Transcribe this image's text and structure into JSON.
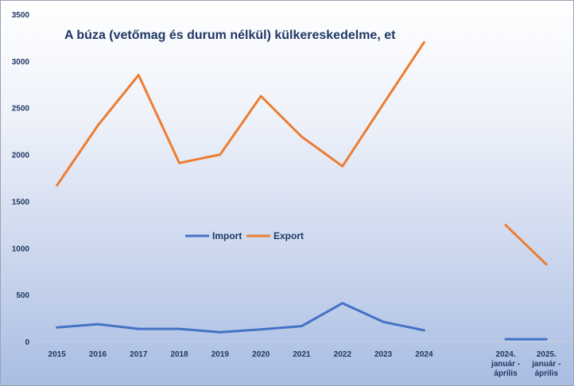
{
  "chart_data": {
    "type": "line",
    "title": "A búza (vetőmag és durum nélkül) külkereskedelme, et",
    "xlabel": "",
    "ylabel": "",
    "ylim": [
      0,
      3500
    ],
    "yticks": [
      "0",
      "500",
      "1000",
      "1500",
      "2000",
      "2500",
      "3000",
      "3500"
    ],
    "grid": false,
    "legend": "center",
    "categories": [
      [
        "2015"
      ],
      [
        "2016"
      ],
      [
        "2017"
      ],
      [
        "2018"
      ],
      [
        "2019"
      ],
      [
        "2020"
      ],
      [
        "2021"
      ],
      [
        "2022"
      ],
      [
        "2023"
      ],
      [
        "2024"
      ],
      [
        ""
      ],
      [
        "2024.",
        "január -",
        "április"
      ],
      [
        "2025.",
        "január -",
        "április"
      ]
    ],
    "series": [
      {
        "name": "Import",
        "color": "#4472c4",
        "segments": [
          [
            150,
            185,
            135,
            135,
            100,
            130,
            165,
            410,
            210,
            120
          ],
          [
            25,
            25
          ]
        ]
      },
      {
        "name": "Export",
        "color": "#ed7d31",
        "segments": [
          [
            1670,
            2310,
            2850,
            1910,
            2000,
            2625,
            2190,
            1875,
            2540,
            3200
          ],
          [
            1245,
            825
          ]
        ]
      }
    ],
    "segment_start_index": [
      0,
      11
    ]
  }
}
